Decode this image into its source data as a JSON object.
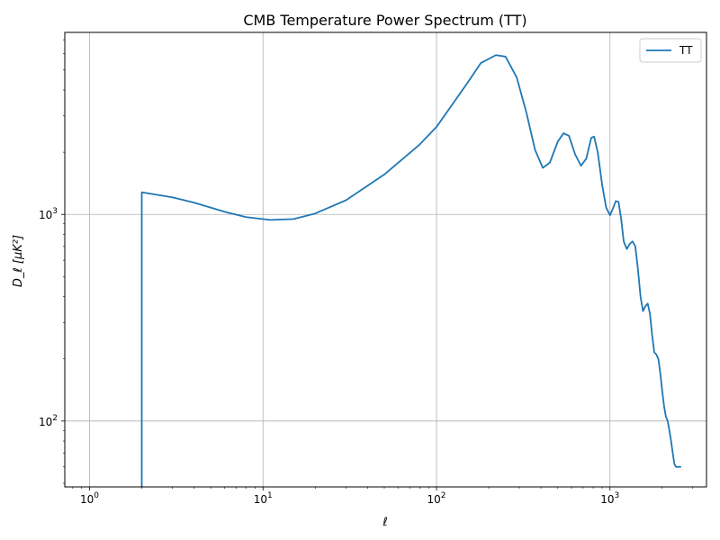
{
  "chart_data": {
    "type": "line",
    "title": "CMB Temperature Power Spectrum (TT)",
    "xlabel": "ℓ",
    "ylabel": "D_ℓ [μK²]",
    "xscale": "log",
    "yscale": "log",
    "xlim": [
      0.72,
      3600
    ],
    "ylim": [
      48,
      7600
    ],
    "grid": true,
    "legend_position": "top-right",
    "x_ticks": [
      {
        "value": 1,
        "base": "10",
        "exp": "0"
      },
      {
        "value": 10,
        "base": "10",
        "exp": "1"
      },
      {
        "value": 100,
        "base": "10",
        "exp": "2"
      },
      {
        "value": 1000,
        "base": "10",
        "exp": "3"
      }
    ],
    "y_ticks": [
      {
        "value": 100,
        "base": "10",
        "exp": "2"
      },
      {
        "value": 1000,
        "base": "10",
        "exp": "3"
      }
    ],
    "series": [
      {
        "name": "TT",
        "color": "#1f77b4",
        "x": [
          2,
          2,
          3,
          4,
          6,
          8,
          11,
          15,
          20,
          30,
          50,
          80,
          100,
          150,
          180,
          220,
          250,
          290,
          330,
          370,
          410,
          450,
          500,
          540,
          580,
          630,
          680,
          730,
          780,
          810,
          850,
          900,
          950,
          1000,
          1040,
          1080,
          1120,
          1160,
          1200,
          1250,
          1300,
          1350,
          1400,
          1450,
          1500,
          1550,
          1600,
          1650,
          1700,
          1750,
          1800,
          1850,
          1900,
          1950,
          2000,
          2050,
          2100,
          2150,
          2200,
          2250,
          2300,
          2350,
          2400,
          2450,
          2500,
          2550
        ],
        "y": [
          48,
          1280,
          1210,
          1140,
          1030,
          970,
          940,
          950,
          1010,
          1170,
          1560,
          2180,
          2650,
          4300,
          5400,
          5900,
          5800,
          4600,
          3100,
          2050,
          1680,
          1780,
          2250,
          2470,
          2400,
          1950,
          1720,
          1860,
          2350,
          2380,
          2000,
          1400,
          1080,
          990,
          1070,
          1160,
          1150,
          950,
          740,
          680,
          720,
          740,
          700,
          540,
          400,
          340,
          360,
          370,
          330,
          260,
          215,
          210,
          200,
          170,
          140,
          118,
          105,
          100,
          90,
          80,
          70,
          62,
          60,
          60,
          60,
          60
        ]
      }
    ]
  },
  "legend": {
    "label": "TT"
  }
}
